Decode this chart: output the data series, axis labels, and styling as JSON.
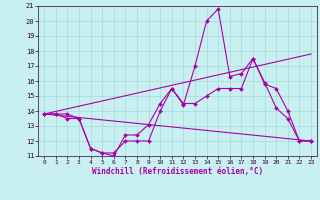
{
  "xlabel": "Windchill (Refroidissement éolien,°C)",
  "bg_color": "#c8f0f0",
  "line_color": "#aa00aa",
  "grid_color": "#aadddd",
  "xlim": [
    -0.5,
    23.5
  ],
  "ylim": [
    11,
    21
  ],
  "xticks": [
    0,
    1,
    2,
    3,
    4,
    5,
    6,
    7,
    8,
    9,
    10,
    11,
    12,
    13,
    14,
    15,
    16,
    17,
    18,
    19,
    20,
    21,
    22,
    23
  ],
  "yticks": [
    11,
    12,
    13,
    14,
    15,
    16,
    17,
    18,
    19,
    20,
    21
  ],
  "line1_x": [
    0,
    1,
    2,
    3,
    4,
    5,
    6,
    7,
    8,
    9,
    10,
    11,
    12,
    13,
    14,
    15,
    16,
    17,
    18,
    19,
    20,
    21,
    22,
    23
  ],
  "line1_y": [
    13.8,
    13.8,
    13.5,
    13.5,
    11.5,
    11.2,
    11.0,
    12.4,
    12.4,
    13.1,
    14.5,
    15.5,
    14.4,
    17.0,
    20.0,
    20.8,
    16.3,
    16.5,
    17.5,
    15.9,
    14.2,
    13.5,
    12.0,
    12.0
  ],
  "line2_x": [
    0,
    1,
    2,
    3,
    4,
    5,
    6,
    7,
    8,
    9,
    10,
    11,
    12,
    13,
    14,
    15,
    16,
    17,
    18,
    19,
    20,
    21,
    22,
    23
  ],
  "line2_y": [
    13.8,
    13.8,
    13.8,
    13.5,
    11.5,
    11.2,
    11.2,
    12.0,
    12.0,
    12.0,
    14.0,
    15.5,
    14.5,
    14.5,
    15.0,
    15.5,
    15.5,
    15.5,
    17.5,
    15.8,
    15.5,
    14.0,
    12.0,
    12.0
  ],
  "line3_x": [
    0,
    23
  ],
  "line3_y": [
    13.8,
    12.0
  ],
  "line4_x": [
    0,
    23
  ],
  "line4_y": [
    13.8,
    17.8
  ],
  "tick_fontsize": 5,
  "xlabel_fontsize": 5.5
}
